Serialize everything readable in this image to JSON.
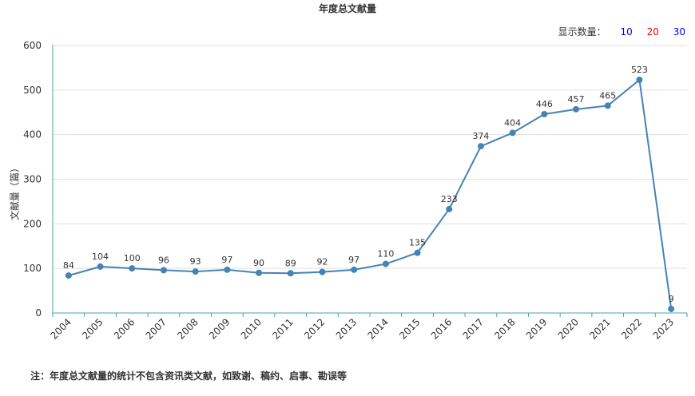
{
  "display": {
    "label": "显示数量：",
    "options": [
      {
        "label": "10",
        "color": "#0000ff"
      },
      {
        "label": "20",
        "color": "#ff0000"
      },
      {
        "label": "30",
        "color": "#0000ff"
      }
    ]
  },
  "note": "注：年度总文献量的统计不包含资讯类文献，如致谢、稿约、启事、勘误等",
  "chart_data": {
    "type": "line",
    "title": "年度总文献量",
    "xlabel": "",
    "ylabel": "文献量（篇）",
    "ylim": [
      0,
      600
    ],
    "yticks": [
      0,
      100,
      200,
      300,
      400,
      500,
      600
    ],
    "grid": true,
    "line_color": "#4682b4",
    "categories": [
      "2004",
      "2005",
      "2006",
      "2007",
      "2008",
      "2009",
      "2010",
      "2011",
      "2012",
      "2013",
      "2014",
      "2015",
      "2016",
      "2017",
      "2018",
      "2019",
      "2020",
      "2021",
      "2022",
      "2023"
    ],
    "values": [
      84,
      104,
      100,
      96,
      93,
      97,
      90,
      89,
      92,
      97,
      110,
      135,
      233,
      374,
      404,
      446,
      457,
      465,
      523,
      9
    ]
  }
}
